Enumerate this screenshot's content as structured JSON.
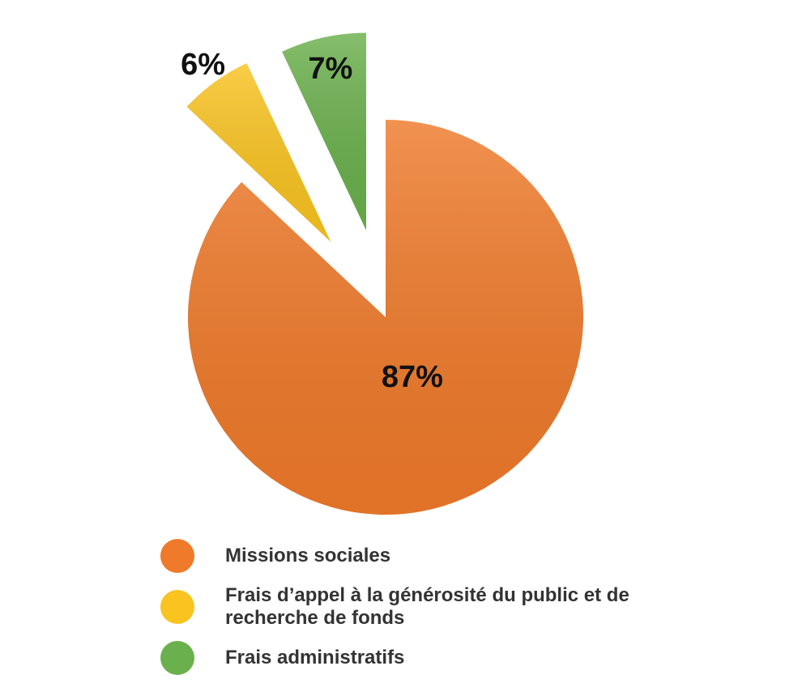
{
  "chart_data": {
    "type": "pie",
    "categories": [
      "Missions sociales",
      "Frais d’appel à la générosité du public et de recherche de fonds",
      "Frais administratifs"
    ],
    "values": [
      87,
      6,
      7
    ],
    "value_labels": [
      "87%",
      "6%",
      "7%"
    ],
    "colors": [
      "#ef7a2a",
      "#f9c320",
      "#6ab04c"
    ],
    "legend": "bottom"
  }
}
